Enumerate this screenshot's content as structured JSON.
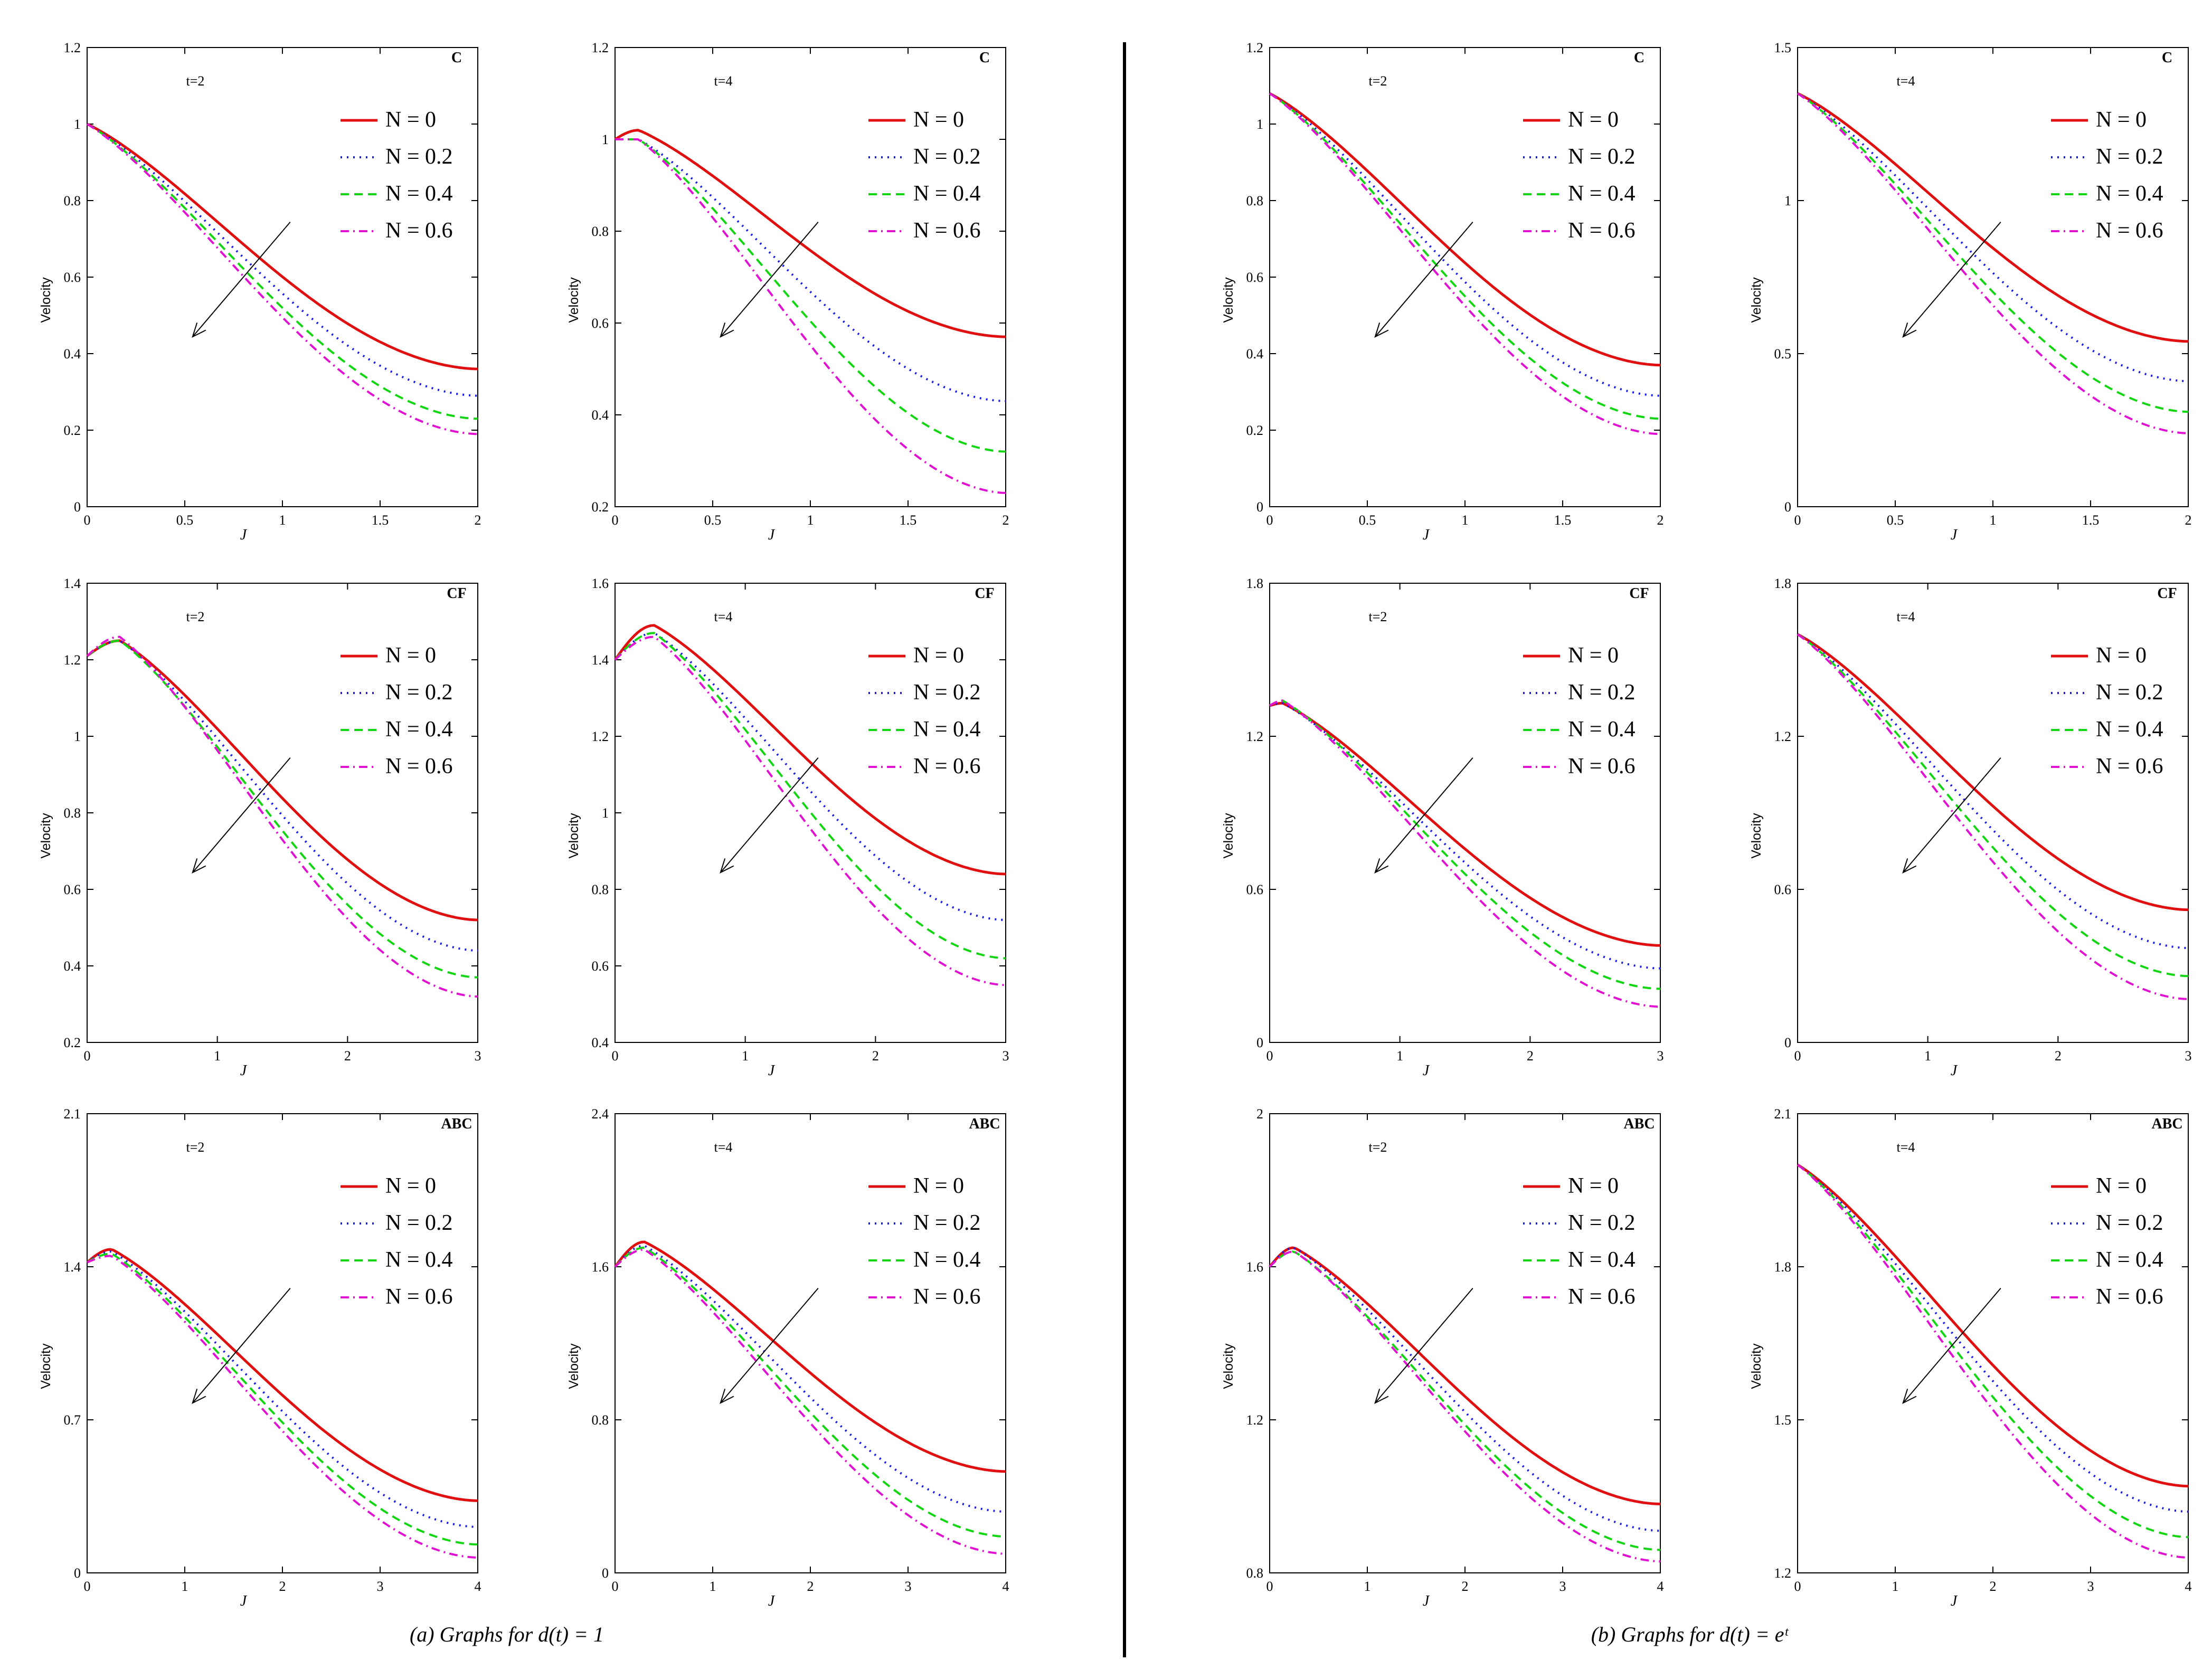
{
  "figure": {
    "caption_left": "(a)  Graphs  for  d(t) = 1",
    "caption_right": "(b)  Graphs  for  d(t) = eᵗ",
    "legend_prefix": "N = ",
    "series_colors": [
      "#e01010",
      "#1a1ae6",
      "#13d613",
      "#e011d0"
    ],
    "series_styles": [
      "solid",
      "dotted",
      "dashed",
      "dashdot"
    ],
    "arrow_note": "arrow indicates increasing N"
  },
  "chart_data": [
    {
      "type": "line",
      "panel": "a",
      "label": "C",
      "time_label": "t=2",
      "xlabel": "J",
      "ylabel": "Velocity",
      "xlim": [
        0,
        2
      ],
      "ylim": [
        0,
        1.2
      ],
      "xticks": [
        "0",
        "0.5",
        "1",
        "1.5",
        "2"
      ],
      "yticks": [
        "0",
        "0.2",
        "0.4",
        "0.6",
        "0.8",
        "1",
        "1.2"
      ],
      "y_start": 1.0,
      "peak_x": 0.0,
      "series": [
        {
          "name": "0",
          "values_end": 0.36
        },
        {
          "name": "0.2",
          "values_end": 0.29
        },
        {
          "name": "0.4",
          "values_end": 0.23
        },
        {
          "name": "0.6",
          "values_end": 0.19
        }
      ]
    },
    {
      "type": "line",
      "panel": "a",
      "label": "C",
      "time_label": "t=4",
      "xlabel": "J",
      "ylabel": "Velocity",
      "xlim": [
        0,
        2
      ],
      "ylim": [
        0.2,
        1.2
      ],
      "xticks": [
        "0",
        "0.5",
        "1",
        "1.5",
        "2"
      ],
      "yticks": [
        "0.2",
        "0.4",
        "0.6",
        "0.8",
        "1",
        "1.2"
      ],
      "y_start": 1.0,
      "peak_x": 0.12,
      "series": [
        {
          "name": "0",
          "peak": 1.02,
          "values_end": 0.57
        },
        {
          "name": "0.2",
          "peak": 1.0,
          "values_end": 0.43
        },
        {
          "name": "0.4",
          "peak": 1.0,
          "values_end": 0.32
        },
        {
          "name": "0.6",
          "peak": 1.0,
          "values_end": 0.23
        }
      ]
    },
    {
      "type": "line",
      "panel": "b",
      "label": "C",
      "time_label": "t=2",
      "xlabel": "J",
      "ylabel": "Velocity",
      "xlim": [
        0,
        2
      ],
      "ylim": [
        0,
        1.2
      ],
      "xticks": [
        "0",
        "0.5",
        "1",
        "1.5",
        "2"
      ],
      "yticks": [
        "0",
        "0.2",
        "0.4",
        "0.6",
        "0.8",
        "1",
        "1.2"
      ],
      "y_start": 1.08,
      "peak_x": 0.0,
      "series": [
        {
          "name": "0",
          "values_end": 0.37
        },
        {
          "name": "0.2",
          "values_end": 0.29
        },
        {
          "name": "0.4",
          "values_end": 0.23
        },
        {
          "name": "0.6",
          "values_end": 0.19
        }
      ]
    },
    {
      "type": "line",
      "panel": "b",
      "label": "C",
      "time_label": "t=4",
      "xlabel": "J",
      "ylabel": "Velocity",
      "xlim": [
        0,
        2
      ],
      "ylim": [
        0,
        1.5
      ],
      "xticks": [
        "0",
        "0.5",
        "1",
        "1.5",
        "2"
      ],
      "yticks": [
        "0",
        "0.5",
        "1",
        "1.5"
      ],
      "y_start": 1.35,
      "peak_x": 0.0,
      "series": [
        {
          "name": "0",
          "values_end": 0.54
        },
        {
          "name": "0.2",
          "values_end": 0.41
        },
        {
          "name": "0.4",
          "values_end": 0.31
        },
        {
          "name": "0.6",
          "values_end": 0.24
        }
      ]
    },
    {
      "type": "line",
      "panel": "a",
      "label": "CF",
      "time_label": "t=2",
      "xlabel": "J",
      "ylabel": "Velocity",
      "xlim": [
        0,
        3
      ],
      "ylim": [
        0.2,
        1.4
      ],
      "xticks": [
        "0",
        "1",
        "2",
        "3"
      ],
      "yticks": [
        "0.2",
        "0.4",
        "0.6",
        "0.8",
        "1",
        "1.2",
        "1.4"
      ],
      "y_start": 1.21,
      "peak_x": 0.25,
      "series": [
        {
          "name": "0",
          "peak": 1.25,
          "values_end": 0.52
        },
        {
          "name": "0.2",
          "peak": 1.25,
          "values_end": 0.44
        },
        {
          "name": "0.4",
          "peak": 1.25,
          "values_end": 0.37
        },
        {
          "name": "0.6",
          "peak": 1.26,
          "values_end": 0.32
        }
      ]
    },
    {
      "type": "line",
      "panel": "a",
      "label": "CF",
      "time_label": "t=4",
      "xlabel": "J",
      "ylabel": "Velocity",
      "xlim": [
        0,
        3
      ],
      "ylim": [
        0.4,
        1.6
      ],
      "xticks": [
        "0",
        "1",
        "2",
        "3"
      ],
      "yticks": [
        "0.4",
        "0.6",
        "0.8",
        "1",
        "1.2",
        "1.4",
        "1.6"
      ],
      "y_start": 1.4,
      "peak_x": 0.3,
      "series": [
        {
          "name": "0",
          "peak": 1.49,
          "values_end": 0.84
        },
        {
          "name": "0.2",
          "peak": 1.47,
          "values_end": 0.72
        },
        {
          "name": "0.4",
          "peak": 1.47,
          "values_end": 0.62
        },
        {
          "name": "0.6",
          "peak": 1.46,
          "values_end": 0.55
        }
      ]
    },
    {
      "type": "line",
      "panel": "b",
      "label": "CF",
      "time_label": "t=2",
      "xlabel": "J",
      "ylabel": "Velocity",
      "xlim": [
        0,
        3
      ],
      "ylim": [
        0,
        1.8
      ],
      "xticks": [
        "0",
        "1",
        "2",
        "3"
      ],
      "yticks": [
        "0",
        "0.6",
        "1.2",
        "1.8"
      ],
      "y_start": 1.32,
      "peak_x": 0.1,
      "series": [
        {
          "name": "0",
          "peak": 1.33,
          "values_end": 0.38
        },
        {
          "name": "0.2",
          "peak": 1.33,
          "values_end": 0.29
        },
        {
          "name": "0.4",
          "peak": 1.34,
          "values_end": 0.21
        },
        {
          "name": "0.6",
          "peak": 1.34,
          "values_end": 0.14
        }
      ]
    },
    {
      "type": "line",
      "panel": "b",
      "label": "CF",
      "time_label": "t=4",
      "xlabel": "J",
      "ylabel": "Velocity",
      "xlim": [
        0,
        3
      ],
      "ylim": [
        0,
        1.8
      ],
      "xticks": [
        "0",
        "1",
        "2",
        "3"
      ],
      "yticks": [
        "0",
        "0.6",
        "1.2",
        "1.8"
      ],
      "y_start": 1.6,
      "peak_x": 0.0,
      "series": [
        {
          "name": "0",
          "values_end": 0.52
        },
        {
          "name": "0.2",
          "values_end": 0.37
        },
        {
          "name": "0.4",
          "values_end": 0.26
        },
        {
          "name": "0.6",
          "values_end": 0.17
        }
      ]
    },
    {
      "type": "line",
      "panel": "a",
      "label": "ABC",
      "time_label": "t=2",
      "xlabel": "J",
      "ylabel": "Velocity",
      "xlim": [
        0,
        4
      ],
      "ylim": [
        0,
        2.1
      ],
      "xticks": [
        "0",
        "1",
        "2",
        "3",
        "4"
      ],
      "yticks": [
        "0",
        "0.7",
        "1.4",
        "2.1"
      ],
      "y_start": 1.42,
      "peak_x": 0.25,
      "series": [
        {
          "name": "0",
          "peak": 1.48,
          "values_end": 0.33
        },
        {
          "name": "0.2",
          "peak": 1.47,
          "values_end": 0.21
        },
        {
          "name": "0.4",
          "peak": 1.46,
          "values_end": 0.13
        },
        {
          "name": "0.6",
          "peak": 1.45,
          "values_end": 0.07
        }
      ]
    },
    {
      "type": "line",
      "panel": "a",
      "label": "ABC",
      "time_label": "t=4",
      "xlabel": "J",
      "ylabel": "Velocity",
      "xlim": [
        0,
        4
      ],
      "ylim": [
        0,
        2.4
      ],
      "xticks": [
        "0",
        "1",
        "2",
        "3",
        "4"
      ],
      "yticks": [
        "0",
        "0.8",
        "1.6",
        "2.4"
      ],
      "y_start": 1.6,
      "peak_x": 0.3,
      "series": [
        {
          "name": "0",
          "peak": 1.73,
          "values_end": 0.53
        },
        {
          "name": "0.2",
          "peak": 1.71,
          "values_end": 0.32
        },
        {
          "name": "0.4",
          "peak": 1.7,
          "values_end": 0.19
        },
        {
          "name": "0.6",
          "peak": 1.69,
          "values_end": 0.1
        }
      ]
    },
    {
      "type": "line",
      "panel": "b",
      "label": "ABC",
      "time_label": "t=2",
      "xlabel": "J",
      "ylabel": "Velocity",
      "xlim": [
        0,
        4
      ],
      "ylim": [
        0.8,
        2
      ],
      "xticks": [
        "0",
        "1",
        "2",
        "3",
        "4"
      ],
      "yticks": [
        "0.8",
        "1.2",
        "1.6",
        "2"
      ],
      "y_start": 1.6,
      "peak_x": 0.25,
      "series": [
        {
          "name": "0",
          "peak": 1.65,
          "values_end": 0.98
        },
        {
          "name": "0.2",
          "peak": 1.65,
          "values_end": 0.91
        },
        {
          "name": "0.4",
          "peak": 1.64,
          "values_end": 0.86
        },
        {
          "name": "0.6",
          "peak": 1.64,
          "values_end": 0.83
        }
      ]
    },
    {
      "type": "line",
      "panel": "b",
      "label": "ABC",
      "time_label": "t=4",
      "xlabel": "J",
      "ylabel": "Velocity",
      "xlim": [
        0,
        4
      ],
      "ylim": [
        1.2,
        2.1
      ],
      "xticks": [
        "0",
        "1",
        "2",
        "3",
        "4"
      ],
      "yticks": [
        "1.2",
        "1.5",
        "1.8",
        "2.1"
      ],
      "y_start": 2.0,
      "peak_x": 0.0,
      "series": [
        {
          "name": "0",
          "values_end": 1.37
        },
        {
          "name": "0.2",
          "values_end": 1.32
        },
        {
          "name": "0.4",
          "values_end": 1.27
        },
        {
          "name": "0.6",
          "values_end": 1.23
        }
      ]
    }
  ]
}
